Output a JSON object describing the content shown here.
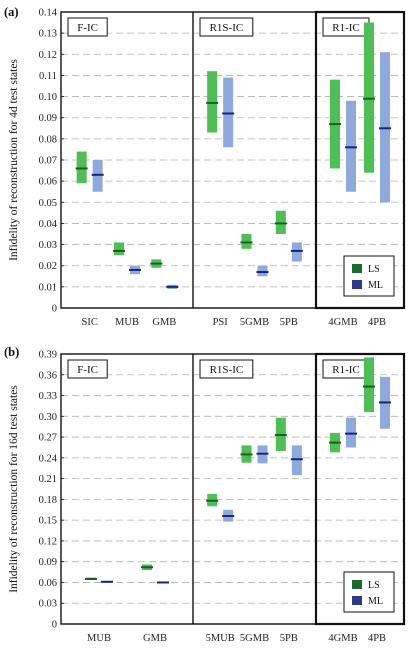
{
  "colors": {
    "ls_range": "#4dbf55",
    "ls_median": "#1b5e20",
    "ml_range": "#8ea9dc",
    "ml_median": "#1a237e",
    "legend_ls": "#1b6b2a",
    "legend_ml": "#2c3a8c",
    "grid": "#b0b0b0",
    "frame": "#111111"
  },
  "legend": {
    "ls": "LS",
    "ml": "ML"
  },
  "chart_data": [
    {
      "panel": "(a)",
      "type": "bar",
      "ylabel": "Infidelity of reconstruction for 4d test states",
      "ylim": [
        0,
        0.14
      ],
      "yticks": [
        "0",
        "0.01",
        "0.02",
        "0.03",
        "0.04",
        "0.05",
        "0.06",
        "0.07",
        "0.08",
        "0.09",
        "0.10",
        "0.11",
        "0.12",
        "0.13",
        "0.14"
      ],
      "grid": true,
      "legend_position": "bottom-right",
      "groups": [
        {
          "label": "F-IC",
          "categories": [
            "SIC",
            "MUB",
            "GMB"
          ]
        },
        {
          "label": "R1S-IC",
          "categories": [
            "PSI",
            "5GMB",
            "5PB"
          ]
        },
        {
          "label": "R1-IC",
          "categories": [
            "4GMB",
            "4PB"
          ]
        }
      ],
      "series": [
        {
          "name": "LS",
          "ranges": [
            [
              0.059,
              0.074
            ],
            [
              0.025,
              0.031
            ],
            [
              0.019,
              0.023
            ],
            [
              0.083,
              0.112
            ],
            [
              0.028,
              0.035
            ],
            [
              0.035,
              0.046
            ],
            [
              0.066,
              0.108
            ],
            [
              0.064,
              0.135
            ]
          ],
          "medians": [
            0.066,
            0.027,
            0.021,
            0.097,
            0.031,
            0.04,
            0.087,
            0.099
          ]
        },
        {
          "name": "ML",
          "ranges": [
            [
              0.055,
              0.07
            ],
            [
              0.016,
              0.02
            ],
            [
              0.009,
              0.011
            ],
            [
              0.076,
              0.109
            ],
            [
              0.015,
              0.02
            ],
            [
              0.022,
              0.031
            ],
            [
              0.055,
              0.098
            ],
            [
              0.05,
              0.121
            ]
          ],
          "medians": [
            0.063,
            0.018,
            0.01,
            0.092,
            0.017,
            0.027,
            0.076,
            0.085
          ]
        }
      ]
    },
    {
      "panel": "(b)",
      "type": "bar",
      "ylabel": "Infidelity of reconstruction for 16d test states",
      "ylim": [
        0,
        0.39
      ],
      "yticks": [
        "0",
        "0.03",
        "0.06",
        "0.09",
        "0.12",
        "0.15",
        "0.18",
        "0.21",
        "0.24",
        "0.27",
        "0.30",
        "0.33",
        "0.36",
        "0.39"
      ],
      "grid": true,
      "legend_position": "bottom-right",
      "groups": [
        {
          "label": "F-IC",
          "categories": [
            "MUB",
            "GMB"
          ]
        },
        {
          "label": "R1S-IC",
          "categories": [
            "5MUB",
            "5GMB",
            "5PB"
          ]
        },
        {
          "label": "R1-IC",
          "categories": [
            "4GMB",
            "4PB"
          ]
        }
      ],
      "series": [
        {
          "name": "LS",
          "ranges": [
            [
              0.064,
              0.067
            ],
            [
              0.078,
              0.086
            ],
            [
              0.17,
              0.188
            ],
            [
              0.233,
              0.258
            ],
            [
              0.25,
              0.298
            ],
            [
              0.248,
              0.276
            ],
            [
              0.306,
              0.385
            ]
          ],
          "medians": [
            0.065,
            0.082,
            0.178,
            0.245,
            0.273,
            0.262,
            0.343
          ]
        },
        {
          "name": "ML",
          "ranges": [
            [
              0.06,
              0.062
            ],
            [
              0.059,
              0.061
            ],
            [
              0.148,
              0.165
            ],
            [
              0.232,
              0.258
            ],
            [
              0.215,
              0.258
            ],
            [
              0.255,
              0.298
            ],
            [
              0.282,
              0.357
            ]
          ],
          "medians": [
            0.061,
            0.06,
            0.156,
            0.246,
            0.238,
            0.275,
            0.32
          ]
        }
      ]
    }
  ]
}
